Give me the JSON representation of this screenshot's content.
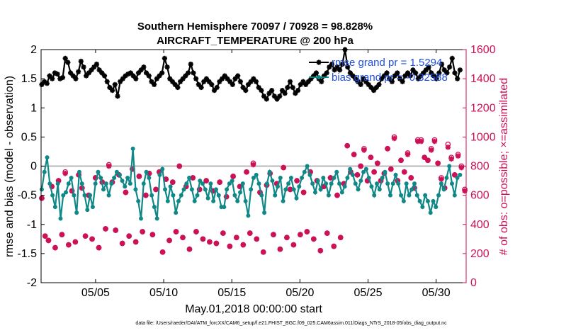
{
  "chart_data": {
    "type": "line",
    "title_line1": "Southern Hemisphere 70097 / 70928 = 98.828%",
    "title_line2": "AIRCRAFT_TEMPERATURE @ 200 hPa",
    "xlabel": "May.01,2018 00:00:00 start",
    "ylabel": "rmse and bias (model - observation)",
    "y2label": "# of obs: o=possible; ×=assimilated",
    "footer": "data file: /Users/raeder/DAI/ATM_forcXX/CAM6_setup/f.e21.FHIST_BGC.f09_025.CAM6assim.011/Diags_NTrS_2018-05/obs_diag_output.nc",
    "xlim": [
      1.0,
      32.2
    ],
    "ylim": [
      -2,
      2
    ],
    "y2lim": [
      0,
      1600
    ],
    "x_ticks": [
      5,
      10,
      15,
      20,
      25,
      30
    ],
    "x_tick_labels": [
      "05/05",
      "05/10",
      "05/15",
      "05/20",
      "05/25",
      "05/30"
    ],
    "y_ticks": [
      -2,
      -1.5,
      -1,
      -0.5,
      0,
      0.5,
      1,
      1.5,
      2
    ],
    "y_tick_labels": [
      "-2",
      "-1.5",
      "-1",
      "-0.5",
      "0",
      "0.5",
      "1",
      "1.5",
      "2"
    ],
    "y2_ticks": [
      0,
      200,
      400,
      600,
      800,
      1000,
      1200,
      1400,
      1600
    ],
    "y2_tick_labels": [
      "0",
      "200",
      "400",
      "600",
      "800",
      "1000",
      "1200",
      "1400",
      "1600"
    ],
    "zero_line": 0,
    "grid": false,
    "legend_position": "top-right",
    "series": [
      {
        "name": "rmse grand pr = 1.5294",
        "axis": "left",
        "color": "#000000",
        "marker": "star",
        "values": [
          1.4,
          1.45,
          1.42,
          1.55,
          1.5,
          1.6,
          1.58,
          1.5,
          1.52,
          1.85,
          1.78,
          1.6,
          1.55,
          1.5,
          1.62,
          1.8,
          1.7,
          1.55,
          1.6,
          1.65,
          1.7,
          1.75,
          1.65,
          1.6,
          1.55,
          1.45,
          1.35,
          1.3,
          1.4,
          1.2,
          1.45,
          1.5,
          1.55,
          1.58,
          1.6,
          1.55,
          1.5,
          1.6,
          1.65,
          1.7,
          1.6,
          1.55,
          1.45,
          1.4,
          1.5,
          1.55,
          1.6,
          1.85,
          1.7,
          1.5,
          1.45,
          1.4,
          1.35,
          1.45,
          1.5,
          1.55,
          1.6,
          1.75,
          1.6,
          1.5,
          1.4,
          1.35,
          1.45,
          1.5,
          1.45,
          1.4,
          1.3,
          1.35,
          1.45,
          1.5,
          1.55,
          1.5,
          1.45,
          1.4,
          1.5,
          1.55,
          1.45,
          1.35,
          1.3,
          1.4,
          1.45,
          1.5,
          1.45,
          1.35,
          1.3,
          1.2,
          1.15,
          1.25,
          1.3,
          1.2,
          1.15,
          1.2,
          1.3,
          1.25,
          1.35,
          1.45,
          1.35,
          1.25,
          1.3,
          1.4,
          1.45,
          1.4,
          1.45,
          1.5,
          1.55,
          1.6,
          1.5,
          1.45,
          1.55,
          1.6,
          1.7,
          1.75,
          1.65,
          1.7,
          1.65,
          1.75,
          2.0,
          1.7,
          1.6,
          1.55,
          1.5,
          1.45,
          1.4,
          1.5,
          1.45,
          1.4,
          1.35,
          1.3,
          1.35,
          1.4,
          1.5,
          1.55,
          1.6,
          1.5,
          1.45,
          1.55,
          1.6,
          1.5,
          1.45,
          1.55,
          1.6,
          1.55,
          1.65,
          1.6,
          1.5,
          1.55,
          1.6,
          1.65,
          1.7,
          1.6,
          1.55,
          1.5,
          1.6,
          1.75,
          1.65,
          1.6,
          1.7,
          1.85,
          1.6,
          1.5,
          1.65
        ]
      },
      {
        "name": "bias grand pr = -0.32588",
        "axis": "left",
        "color": "#118888",
        "marker": "circle",
        "values": [
          -0.4,
          -0.1,
          0.15,
          -0.3,
          -0.5,
          -0.7,
          -0.3,
          -0.9,
          -0.5,
          -0.45,
          -0.3,
          -0.2,
          -0.5,
          -0.8,
          -0.1,
          -0.3,
          -0.5,
          -0.75,
          -0.5,
          -0.7,
          -0.3,
          -0.1,
          -0.2,
          -0.4,
          -0.3,
          -0.5,
          -0.3,
          -0.2,
          -0.1,
          -0.15,
          -0.25,
          -0.35,
          -0.2,
          -0.3,
          0.3,
          -0.4,
          -0.6,
          -0.9,
          -0.3,
          -0.1,
          -0.2,
          -0.5,
          -0.7,
          -0.9,
          -0.15,
          -0.05,
          -0.4,
          -0.6,
          -0.35,
          -0.5,
          -0.8,
          -0.6,
          -0.5,
          -0.4,
          -0.3,
          -0.2,
          -0.4,
          -0.6,
          -0.5,
          -0.25,
          -0.3,
          -0.4,
          -0.55,
          -0.3,
          -0.6,
          -0.4,
          -0.5,
          -0.7,
          -0.7,
          -0.4,
          -0.3,
          -0.25,
          -0.5,
          -0.6,
          -0.45,
          -0.3,
          -0.6,
          -0.85,
          -0.4,
          -0.2,
          -0.15,
          -0.3,
          -0.5,
          -0.8,
          -0.3,
          -0.1,
          -0.25,
          -0.5,
          -0.35,
          -0.2,
          -0.6,
          -0.4,
          -0.3,
          -0.2,
          -0.4,
          -0.55,
          -0.35,
          -0.2,
          -0.1,
          0.0,
          -0.15,
          -0.3,
          -0.45,
          -0.25,
          -0.4,
          -0.2,
          -0.3,
          -0.5,
          -0.3,
          -0.2,
          -0.1,
          -0.3,
          -0.45,
          -0.35,
          -0.2,
          -0.05,
          -0.15,
          -0.3,
          -0.4,
          -0.25,
          -0.1,
          -0.05,
          -0.2,
          -0.35,
          -0.5,
          -0.3,
          -0.4,
          -0.2,
          -0.1,
          -0.3,
          -0.5,
          -0.3,
          -0.15,
          -0.3,
          -0.5,
          -0.6,
          -0.3,
          -0.5,
          -0.4,
          -0.3,
          -0.5,
          -0.6,
          -0.7,
          -0.5,
          -0.6,
          -0.8,
          -0.6,
          -0.7,
          -0.5,
          -0.3,
          -0.4,
          -0.2,
          0.0,
          -0.3,
          -0.5,
          -0.2,
          -0.15
        ]
      },
      {
        "name": "possible",
        "axis": "right",
        "color": "#cc1157",
        "marker": "o",
        "values": [
          580,
          320,
          290,
          660,
          240,
          700,
          330,
          760,
          260,
          630,
          280,
          740,
          650,
          320,
          600,
          300,
          720,
          240,
          690,
          370,
          810,
          690,
          360,
          740,
          270,
          620,
          320,
          780,
          280,
          730,
          350,
          600,
          750,
          330,
          640,
          760,
          210,
          710,
          290,
          690,
          350,
          800,
          310,
          660,
          230,
          720,
          350,
          640,
          300,
          700,
          280,
          630,
          270,
          690,
          340,
          590,
          250,
          730,
          310,
          660,
          260,
          760,
          340,
          820,
          300,
          620,
          210,
          670,
          750,
          330,
          680,
          230,
          790,
          310,
          640,
          260,
          700,
          330,
          620,
          350,
          760,
          300,
          700,
          220,
          660,
          340,
          720,
          250,
          600,
          310,
          680,
          940,
          760,
          880,
          740,
          800,
          920,
          700,
          860,
          760,
          820,
          700,
          750,
          920,
          780,
          1000,
          700,
          840,
          760,
          890,
          720,
          650,
          980,
          980,
          860,
          840,
          920,
          980,
          820,
          720,
          650,
          950,
          860,
          740,
          880,
          800,
          640
        ]
      },
      {
        "name": "assimilated",
        "axis": "right",
        "color": "#cc1157",
        "marker": "x",
        "values": [
          580,
          320,
          290,
          660,
          240,
          700,
          330,
          750,
          260,
          630,
          280,
          740,
          650,
          320,
          600,
          300,
          720,
          240,
          690,
          370,
          800,
          690,
          360,
          740,
          270,
          620,
          320,
          780,
          280,
          730,
          350,
          600,
          750,
          330,
          640,
          760,
          210,
          710,
          290,
          690,
          350,
          800,
          310,
          660,
          230,
          720,
          350,
          640,
          300,
          700,
          280,
          630,
          270,
          690,
          340,
          590,
          250,
          730,
          310,
          660,
          260,
          760,
          340,
          810,
          300,
          620,
          210,
          670,
          750,
          330,
          680,
          230,
          790,
          310,
          640,
          260,
          700,
          330,
          620,
          350,
          760,
          300,
          700,
          220,
          660,
          340,
          720,
          250,
          600,
          310,
          680,
          940,
          760,
          880,
          740,
          800,
          910,
          700,
          860,
          760,
          820,
          700,
          750,
          920,
          780,
          990,
          700,
          840,
          760,
          880,
          720,
          650,
          970,
          970,
          860,
          840,
          910,
          970,
          820,
          710,
          650,
          930,
          850,
          740,
          870,
          790,
          630
        ]
      }
    ]
  }
}
